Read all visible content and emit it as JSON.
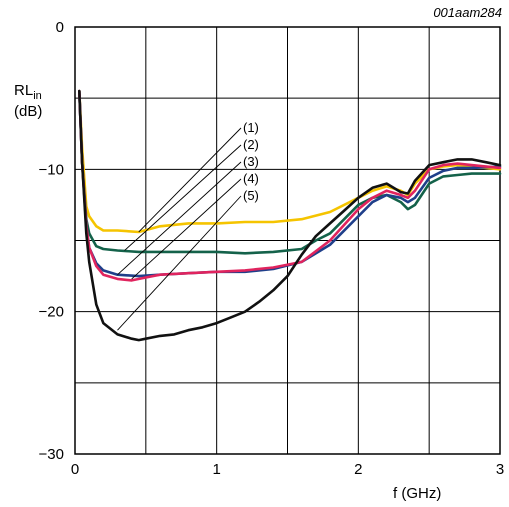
{
  "chart_data": {
    "type": "line",
    "figure_id": "001aam284",
    "xlabel": "f (GHz)",
    "ylabel_main": "RL",
    "ylabel_sub": "in",
    "ylabel_unit": "(dB)",
    "xlim": [
      0,
      3
    ],
    "ylim": [
      -30,
      0
    ],
    "x_ticks": [
      0,
      1,
      2,
      3
    ],
    "x_tick_labels": [
      "0",
      "1",
      "2",
      "3"
    ],
    "y_ticks": [
      0,
      -10,
      -20,
      -30
    ],
    "y_tick_labels": [
      "0",
      "−10",
      "−20",
      "−30"
    ],
    "x_grid_step": 0.5,
    "y_grid_step": 5,
    "grid": true,
    "callout_labels": [
      "(1)",
      "(2)",
      "(3)",
      "(4)",
      "(5)"
    ],
    "callout_targets": [
      [
        0.45,
        -14.4
      ],
      [
        0.35,
        -15.7
      ],
      [
        0.3,
        -17.4
      ],
      [
        0.4,
        -17.7
      ],
      [
        0.3,
        -21.3
      ]
    ],
    "series": [
      {
        "color": "#f5c400",
        "x": [
          0.03,
          0.05,
          0.08,
          0.1,
          0.15,
          0.2,
          0.3,
          0.45,
          0.6,
          0.8,
          1.0,
          1.2,
          1.4,
          1.6,
          1.8,
          2.0,
          2.1,
          2.2,
          2.3,
          2.35,
          2.4,
          2.5,
          2.6,
          2.7,
          2.8,
          3.0
        ],
        "y": [
          -4.5,
          -8.5,
          -12.6,
          -13.3,
          -14.0,
          -14.3,
          -14.3,
          -14.4,
          -14.0,
          -13.8,
          -13.8,
          -13.7,
          -13.7,
          -13.5,
          -13.0,
          -12.0,
          -11.5,
          -11.2,
          -11.5,
          -11.8,
          -11.0,
          -10.0,
          -9.8,
          -9.7,
          -9.8,
          -10.0
        ]
      },
      {
        "color": "#14624a",
        "x": [
          0.03,
          0.05,
          0.08,
          0.1,
          0.15,
          0.2,
          0.3,
          0.45,
          0.6,
          0.8,
          1.0,
          1.2,
          1.4,
          1.6,
          1.7,
          1.8,
          1.9,
          2.0,
          2.1,
          2.2,
          2.3,
          2.35,
          2.4,
          2.5,
          2.6,
          2.7,
          2.8,
          3.0
        ],
        "y": [
          -4.5,
          -9.5,
          -13.5,
          -14.5,
          -15.4,
          -15.6,
          -15.7,
          -15.8,
          -15.8,
          -15.8,
          -15.8,
          -15.9,
          -15.8,
          -15.6,
          -15.0,
          -14.5,
          -13.5,
          -12.5,
          -12.0,
          -11.8,
          -12.3,
          -12.8,
          -12.5,
          -11.0,
          -10.5,
          -10.4,
          -10.3,
          -10.3
        ]
      },
      {
        "color": "#1f3f8a",
        "x": [
          0.03,
          0.05,
          0.08,
          0.1,
          0.15,
          0.2,
          0.3,
          0.45,
          0.6,
          0.8,
          1.0,
          1.2,
          1.4,
          1.6,
          1.8,
          2.0,
          2.1,
          2.2,
          2.3,
          2.35,
          2.4,
          2.5,
          2.6,
          2.7,
          2.8,
          3.0
        ],
        "y": [
          -4.5,
          -9.5,
          -14.0,
          -15.5,
          -16.6,
          -17.1,
          -17.4,
          -17.5,
          -17.4,
          -17.3,
          -17.2,
          -17.2,
          -17.0,
          -16.5,
          -15.3,
          -13.3,
          -12.3,
          -11.8,
          -12.0,
          -12.3,
          -12.0,
          -10.6,
          -10.1,
          -9.9,
          -9.9,
          -9.8
        ]
      },
      {
        "color": "#e0245e",
        "x": [
          0.03,
          0.05,
          0.08,
          0.1,
          0.15,
          0.2,
          0.3,
          0.4,
          0.5,
          0.6,
          0.8,
          1.0,
          1.2,
          1.4,
          1.6,
          1.8,
          2.0,
          2.1,
          2.2,
          2.3,
          2.35,
          2.4,
          2.5,
          2.6,
          2.7,
          2.8,
          3.0
        ],
        "y": [
          -4.5,
          -9.5,
          -14.0,
          -15.5,
          -16.8,
          -17.4,
          -17.7,
          -17.8,
          -17.6,
          -17.4,
          -17.3,
          -17.2,
          -17.1,
          -16.9,
          -16.5,
          -15.0,
          -12.8,
          -12.0,
          -11.5,
          -11.8,
          -12.0,
          -11.5,
          -10.0,
          -9.7,
          -9.6,
          -9.7,
          -9.9
        ]
      },
      {
        "color": "#111111",
        "x": [
          0.03,
          0.05,
          0.08,
          0.1,
          0.15,
          0.2,
          0.3,
          0.4,
          0.45,
          0.5,
          0.6,
          0.7,
          0.8,
          0.9,
          1.0,
          1.1,
          1.2,
          1.3,
          1.4,
          1.5,
          1.6,
          1.7,
          1.8,
          1.9,
          2.0,
          2.1,
          2.2,
          2.3,
          2.35,
          2.4,
          2.5,
          2.6,
          2.7,
          2.8,
          2.9,
          3.0
        ],
        "y": [
          -4.5,
          -9.5,
          -14.5,
          -16.5,
          -19.5,
          -20.8,
          -21.6,
          -21.9,
          -22.0,
          -21.9,
          -21.7,
          -21.6,
          -21.3,
          -21.1,
          -20.8,
          -20.4,
          -20.0,
          -19.3,
          -18.5,
          -17.5,
          -16.0,
          -14.7,
          -13.8,
          -12.9,
          -12.0,
          -11.3,
          -11.0,
          -11.6,
          -11.7,
          -10.8,
          -9.7,
          -9.5,
          -9.3,
          -9.3,
          -9.5,
          -9.7
        ]
      }
    ]
  }
}
